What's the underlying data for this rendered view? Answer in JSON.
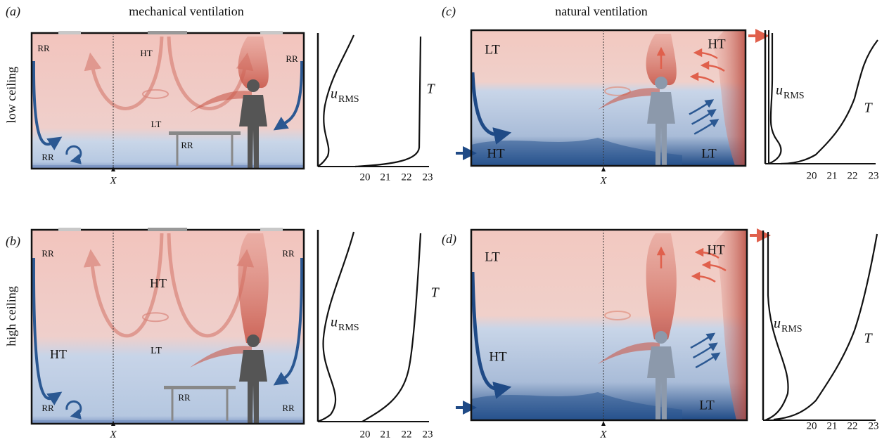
{
  "columns": [
    {
      "title": "mechanical ventilation"
    },
    {
      "title": "natural ventilation"
    }
  ],
  "rows": [
    {
      "title": "low ceiling"
    },
    {
      "title": "high ceiling"
    }
  ],
  "panels": [
    {
      "label": "(a)",
      "regions": [
        "RR",
        "HT",
        "RR",
        "LT",
        "RR",
        "RR"
      ],
      "position_marker": "X",
      "profile": {
        "velocity_symbol": "u",
        "velocity_subscript": "RMS",
        "temperature_symbol": "T",
        "ticks": [
          20,
          21,
          22,
          23
        ]
      }
    },
    {
      "label": "(b)",
      "regions": [
        "RR",
        "HT",
        "RR",
        "LT",
        "HT",
        "RR",
        "RR",
        "RR"
      ],
      "position_marker": "X",
      "profile": {
        "velocity_symbol": "u",
        "velocity_subscript": "RMS",
        "temperature_symbol": "T",
        "ticks": [
          20,
          21,
          22,
          23
        ]
      }
    },
    {
      "label": "(c)",
      "regions": [
        "LT",
        "HT",
        "HT",
        "LT"
      ],
      "position_marker": "X",
      "profile": {
        "velocity_symbol": "u",
        "velocity_subscript": "RMS",
        "temperature_symbol": "T",
        "ticks": [
          20,
          21,
          22,
          23
        ]
      }
    },
    {
      "label": "(d)",
      "regions": [
        "LT",
        "HT",
        "HT",
        "LT"
      ],
      "position_marker": "X",
      "profile": {
        "velocity_symbol": "u",
        "velocity_subscript": "RMS",
        "temperature_symbol": "T",
        "ticks": [
          20,
          21,
          22,
          23
        ]
      }
    }
  ]
}
